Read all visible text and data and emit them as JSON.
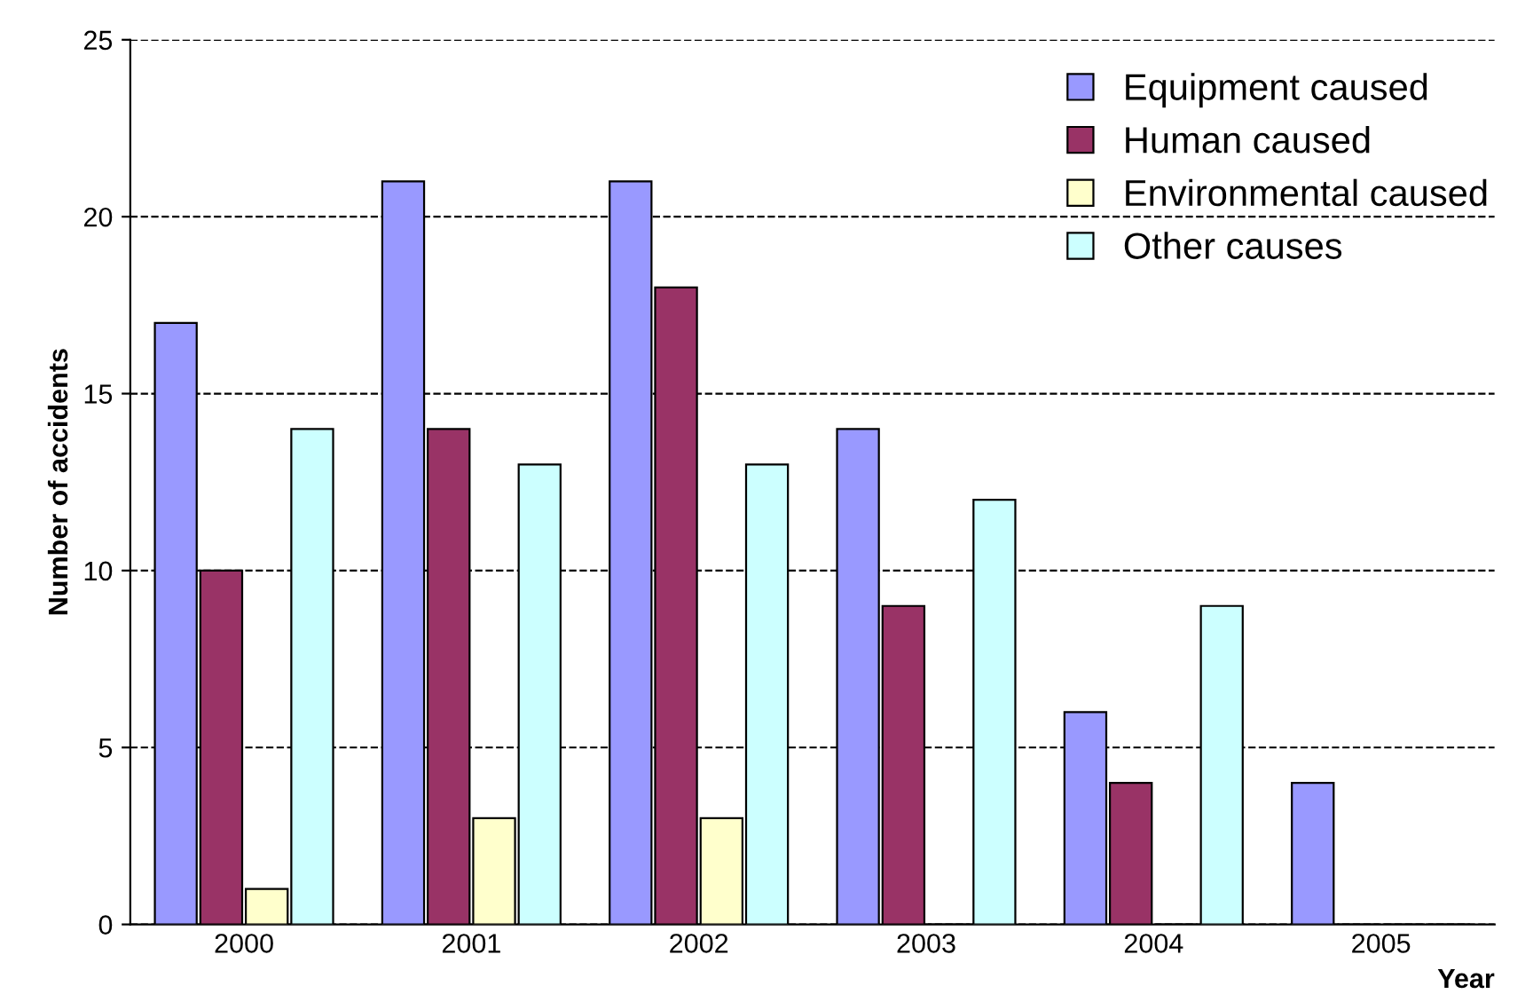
{
  "chart_data": {
    "type": "bar",
    "xlabel": "Year",
    "ylabel": "Number of accidents",
    "categories": [
      "2000",
      "2001",
      "2002",
      "2003",
      "2004",
      "2005"
    ],
    "series": [
      {
        "name": "Equipment caused",
        "color": "#9999ff",
        "values": [
          17,
          21,
          21,
          14,
          6,
          4
        ]
      },
      {
        "name": "Human caused",
        "color": "#993366",
        "values": [
          10,
          14,
          18,
          9,
          4,
          0
        ]
      },
      {
        "name": "Environmental caused",
        "color": "#ffffcc",
        "values": [
          1,
          3,
          3,
          0,
          0,
          0
        ]
      },
      {
        "name": "Other causes",
        "color": "#ccffff",
        "values": [
          14,
          13,
          13,
          12,
          9,
          0
        ]
      }
    ],
    "ylim": [
      0,
      25
    ],
    "yticks": [
      0,
      5,
      10,
      15,
      20,
      25
    ],
    "grid": "y",
    "legend": "top right"
  }
}
